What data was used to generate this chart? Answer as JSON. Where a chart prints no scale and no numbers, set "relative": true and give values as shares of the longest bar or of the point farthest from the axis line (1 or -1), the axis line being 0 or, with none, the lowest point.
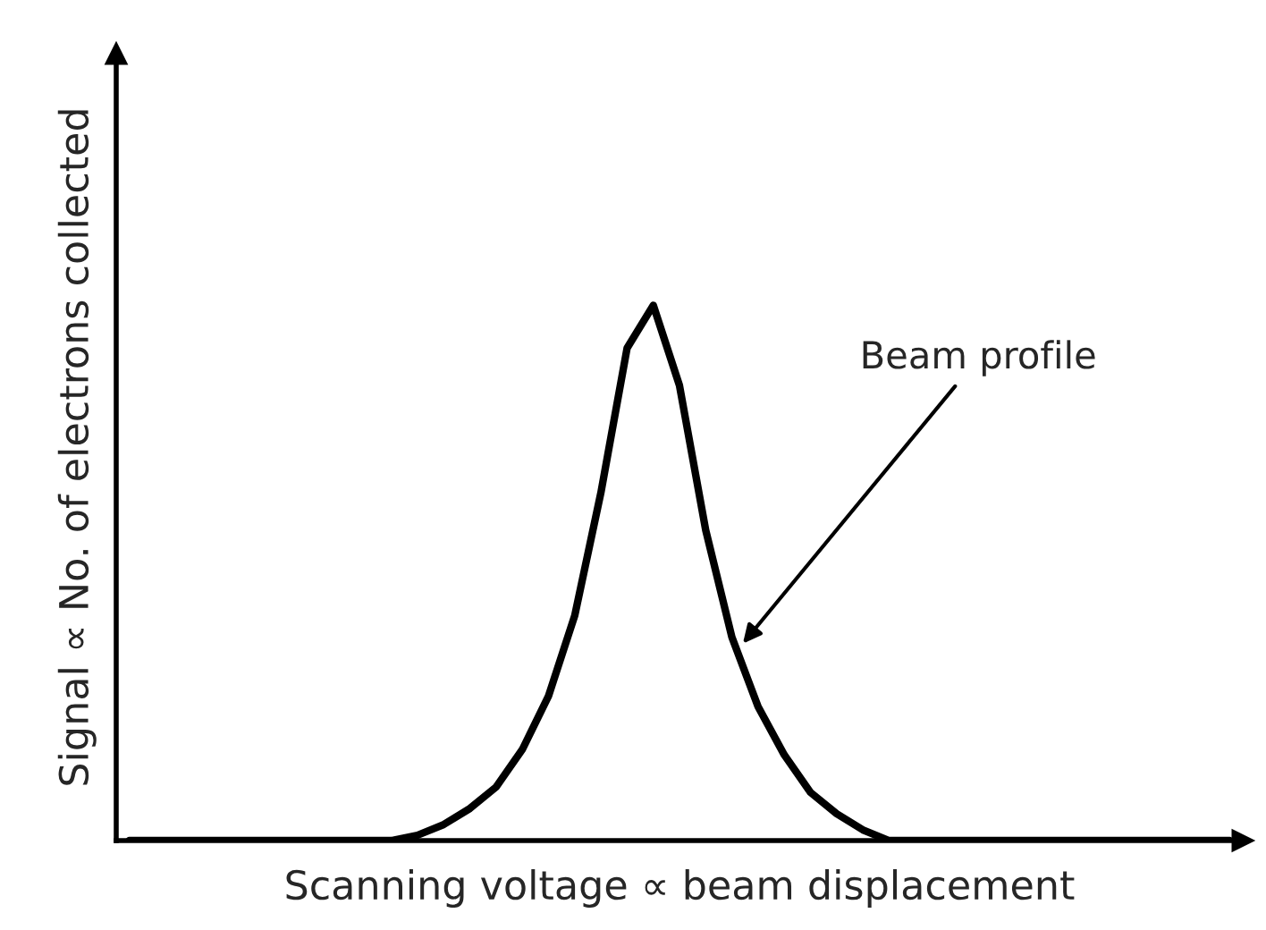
{
  "chart_data": {
    "type": "line",
    "relative": true,
    "xlabel": "Scanning voltage ∝ beam displacement",
    "ylabel": "Signal ∝ No. of electrons collected",
    "categories": [
      null,
      null,
      null,
      null,
      null,
      null,
      null,
      null,
      null,
      null,
      null,
      null,
      null,
      null,
      null,
      null,
      null,
      null,
      null,
      null,
      null,
      null,
      null,
      null,
      null,
      null,
      null,
      null,
      null,
      null,
      null,
      null,
      null,
      null,
      null,
      null,
      null,
      null,
      null,
      null,
      null,
      null,
      null
    ],
    "series": [
      {
        "color": "#000000",
        "values": [
          0,
          0,
          0,
          0,
          0,
          0,
          0,
          0,
          0,
          0,
          0,
          0.01,
          0.03,
          0.06,
          0.1,
          0.17,
          0.27,
          0.42,
          0.65,
          0.92,
          1.0,
          0.85,
          0.58,
          0.38,
          0.25,
          0.16,
          0.09,
          0.05,
          0.02,
          0,
          0,
          0,
          0,
          0,
          0,
          0,
          0,
          0,
          0,
          0,
          0,
          0,
          0
        ]
      }
    ],
    "annotations": [
      "Beam profile"
    ],
    "grid": false,
    "legend": false,
    "marker": "none",
    "line_style": "solid"
  }
}
